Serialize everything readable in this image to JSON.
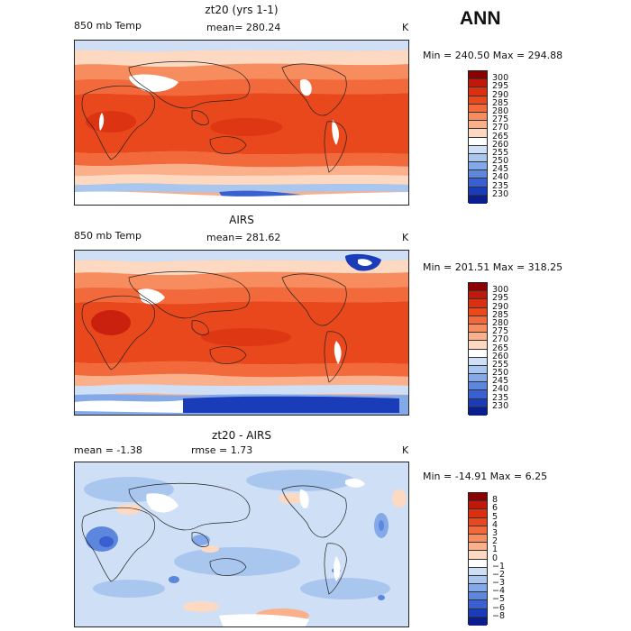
{
  "season": "ANN",
  "panels": [
    {
      "title": "zt20 (yrs 1-1)",
      "left_label": "850 mb Temp",
      "mid_label": "mean= 280.24",
      "unit": "K",
      "stats": "Min = 240.50 Max = 294.88",
      "colorbar": {
        "labels": [
          "300",
          "295",
          "290",
          "285",
          "280",
          "275",
          "270",
          "265",
          "260",
          "255",
          "250",
          "245",
          "240",
          "235",
          "230"
        ],
        "colors": [
          "#8b0000",
          "#c0180a",
          "#d83010",
          "#e8481c",
          "#f26a3c",
          "#f78c5e",
          "#fbb08c",
          "#fdd9c2",
          "#ffffff",
          "#cfe0f6",
          "#a9c6ef",
          "#84a9e8",
          "#5d86dd",
          "#3a5fd0",
          "#1a3cb8",
          "#0a1e90"
        ]
      }
    },
    {
      "title": "AIRS",
      "left_label": "850 mb Temp",
      "mid_label": "mean= 281.62",
      "unit": "K",
      "stats": "Min = 201.51 Max = 318.25",
      "colorbar": {
        "labels": [
          "300",
          "295",
          "290",
          "285",
          "280",
          "275",
          "270",
          "265",
          "260",
          "255",
          "250",
          "245",
          "240",
          "235",
          "230"
        ],
        "colors": [
          "#8b0000",
          "#c0180a",
          "#d83010",
          "#e8481c",
          "#f26a3c",
          "#f78c5e",
          "#fbb08c",
          "#fdd9c2",
          "#ffffff",
          "#cfe0f6",
          "#a9c6ef",
          "#84a9e8",
          "#5d86dd",
          "#3a5fd0",
          "#1a3cb8",
          "#0a1e90"
        ]
      }
    },
    {
      "title": "zt20 - AIRS",
      "left_label": "mean =  -1.38",
      "mid_label": "rmse =   1.73",
      "unit": "K",
      "stats": "Min = -14.91 Max =   6.25",
      "colorbar": {
        "labels": [
          "8",
          "6",
          "5",
          "4",
          "3",
          "2",
          "1",
          "0",
          "−1",
          "−2",
          "−3",
          "−4",
          "−5",
          "−6",
          "−8"
        ],
        "colors": [
          "#8b0000",
          "#c0180a",
          "#d83010",
          "#e8481c",
          "#f26a3c",
          "#f78c5e",
          "#fbb08c",
          "#fdd9c2",
          "#ffffff",
          "#cfe0f6",
          "#a9c6ef",
          "#84a9e8",
          "#5d86dd",
          "#3a5fd0",
          "#1a3cb8",
          "#0a1e90"
        ]
      }
    }
  ]
}
